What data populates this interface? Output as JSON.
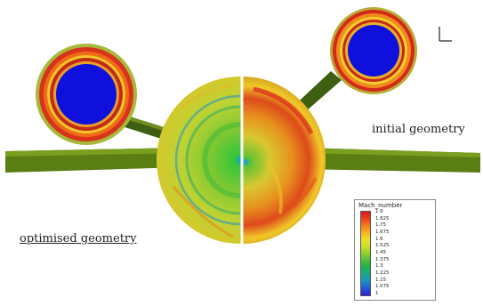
{
  "captions": {
    "initial": "initial geometry",
    "optimised": "optimised geometry"
  },
  "legend": {
    "title": "Mach_number",
    "labels": [
      "1.9",
      "1.825",
      "1.75",
      "1.675",
      "1.6",
      "1.525",
      "1.45",
      "1.375",
      "1.3",
      "1.225",
      "1.15",
      "1.075",
      "1"
    ],
    "colors": [
      "#d7191c",
      "#e8401a",
      "#f07e1e",
      "#f6b322",
      "#eede2a",
      "#c6e02e",
      "#8fd030",
      "#4cbe3a",
      "#1fb04e",
      "#19a98a",
      "#1c8fc4",
      "#2456d8",
      "#2a1fd0"
    ]
  },
  "axis_triad": {
    "label": "L"
  },
  "colors": {
    "wing": "#5a7d14",
    "pylon": "#3e5e12",
    "hub": "#1010dd",
    "body_base": "#c8d232",
    "divider": "#ffffff"
  }
}
